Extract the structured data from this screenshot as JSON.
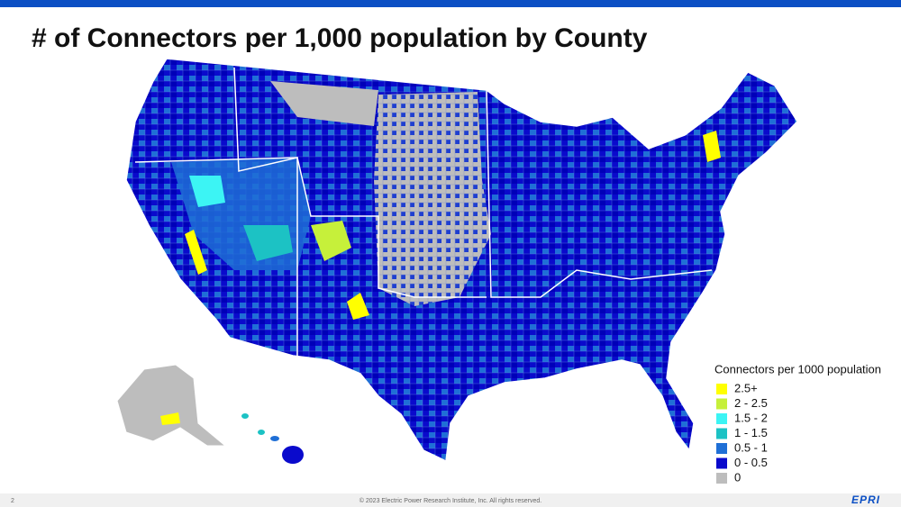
{
  "header": {
    "title": "# of Connectors per 1,000 population by County"
  },
  "legend": {
    "title": "Connectors per 1000 population",
    "items": [
      {
        "label": "2.5+",
        "color": "#ffff00"
      },
      {
        "label": "2 - 2.5",
        "color": "#c6f03a"
      },
      {
        "label": "1.5 - 2",
        "color": "#3cf4f4"
      },
      {
        "label": "1 - 1.5",
        "color": "#1cc2c4"
      },
      {
        "label": "0.5 - 1",
        "color": "#1f6fd6"
      },
      {
        "label": "0 - 0.5",
        "color": "#0a0acc"
      },
      {
        "label": "0",
        "color": "#bdbdbd"
      }
    ]
  },
  "footer": {
    "page": "2",
    "copyright": "© 2023 Electric Power Research Institute, Inc. All rights reserved.",
    "logo": "EPRI"
  }
}
